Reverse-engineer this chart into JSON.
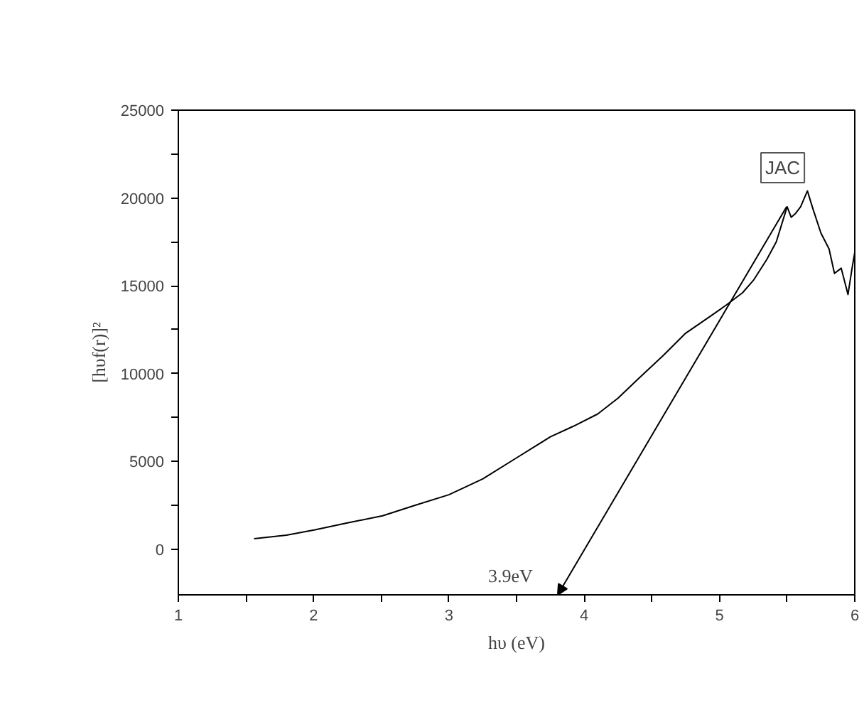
{
  "chart_data": {
    "type": "line",
    "xlabel": "hυ (eV)",
    "ylabel": "[hυf(r)]²",
    "xlim": [
      1,
      6
    ],
    "ylim": [
      -2600,
      25000
    ],
    "xticks": [
      1,
      {
        "value": 1.5,
        "label": null
      },
      2,
      {
        "value": 2.5,
        "label": null
      },
      3,
      {
        "value": 3.5,
        "label": null
      },
      4,
      {
        "value": 4.5,
        "label": null
      },
      5,
      {
        "value": 5.5,
        "label": null
      },
      6
    ],
    "yticks": [
      0,
      {
        "value": 2500,
        "label": null
      },
      5000,
      {
        "value": 7500,
        "label": null
      },
      10000,
      {
        "value": 12500,
        "label": null
      },
      15000,
      {
        "value": 17500,
        "label": null
      },
      20000,
      {
        "value": 22500,
        "label": null
      },
      25000
    ],
    "series": [
      {
        "color": "#000000",
        "x": [
          1.56,
          1.8,
          2.01,
          2.25,
          2.51,
          2.75,
          3.0,
          3.25,
          3.5,
          3.75,
          3.92,
          4.1,
          4.25,
          4.4,
          4.58,
          4.75,
          4.92,
          5.05,
          5.17,
          5.25,
          5.35,
          5.42,
          5.5,
          5.53,
          5.56,
          5.6,
          5.65,
          5.69,
          5.75,
          5.81,
          5.85,
          5.9,
          5.95,
          5.98,
          6.0
        ],
        "values": [
          600,
          800,
          1100,
          1500,
          1900,
          2500,
          3100,
          4000,
          5200,
          6400,
          7000,
          7700,
          8600,
          9700,
          11000,
          12300,
          13200,
          13900,
          14600,
          15300,
          16500,
          17500,
          19500,
          18900,
          19100,
          19500,
          20400,
          19400,
          18000,
          17100,
          15700,
          16000,
          14500,
          16000,
          16900
        ]
      }
    ],
    "annotations": [
      "JAC",
      "3.9eV"
    ],
    "grid": false
  }
}
